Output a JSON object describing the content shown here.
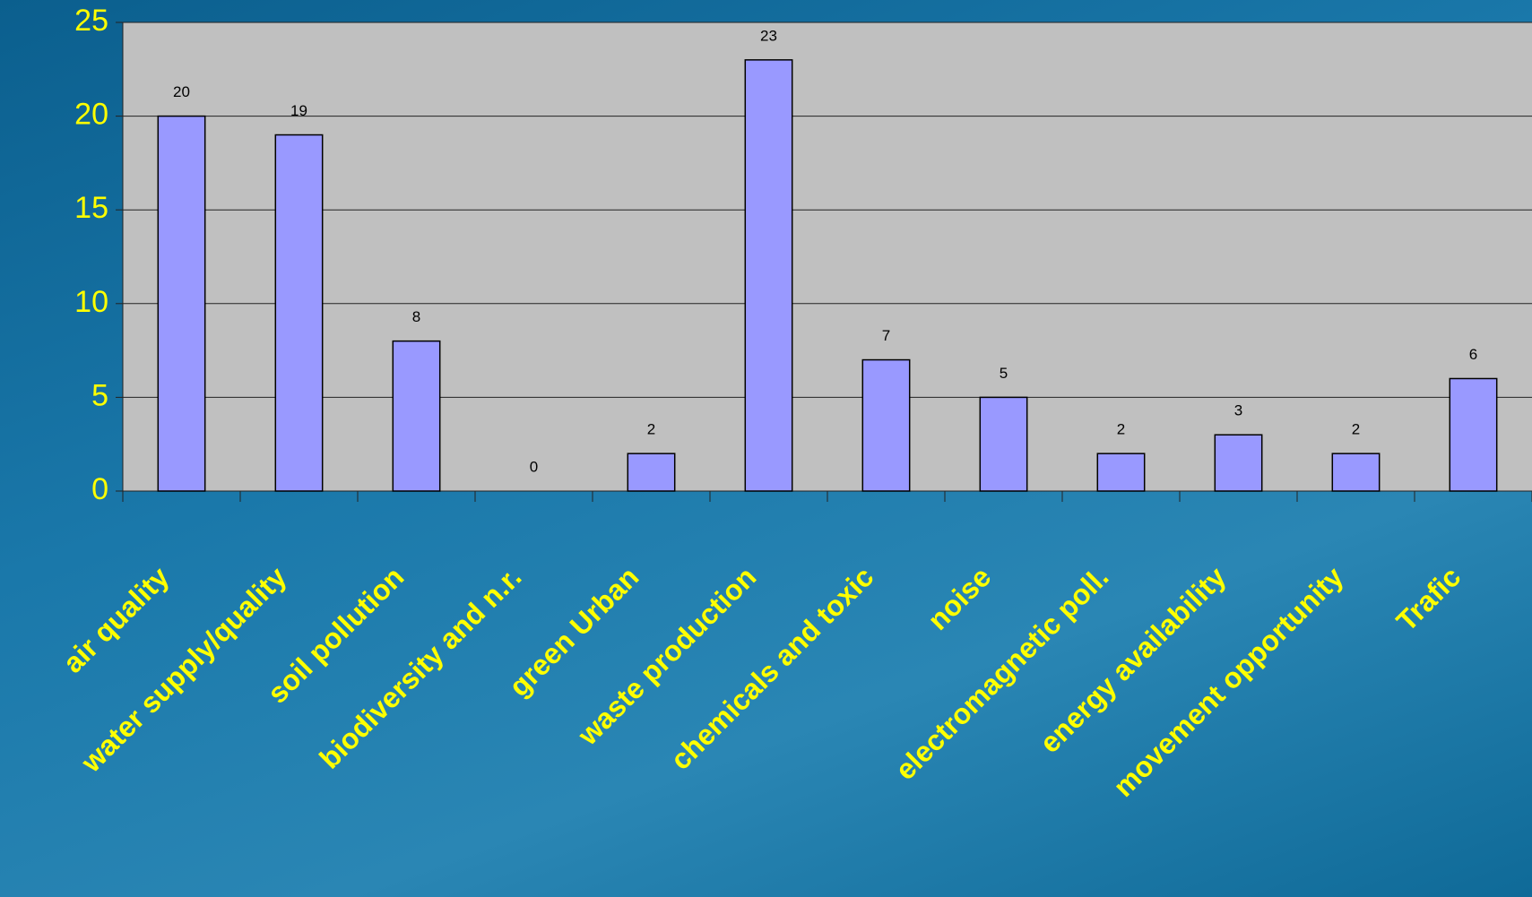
{
  "chart_data": {
    "type": "bar",
    "categories": [
      "air quality",
      "water supply/quality",
      "soil pollution",
      "biodiversity and n.r.",
      "green Urban",
      "waste production",
      "chemicals and toxic",
      "noise",
      "electromagnetic poll.",
      "energy availability",
      "movement opportunity",
      "Trafic"
    ],
    "values": [
      20,
      19,
      8,
      0,
      2,
      23,
      7,
      5,
      2,
      3,
      2,
      6
    ],
    "color": "#9999ff",
    "ylim": [
      0,
      25
    ],
    "yticks": [
      0,
      5,
      10,
      15,
      20,
      25
    ],
    "grid": true
  }
}
